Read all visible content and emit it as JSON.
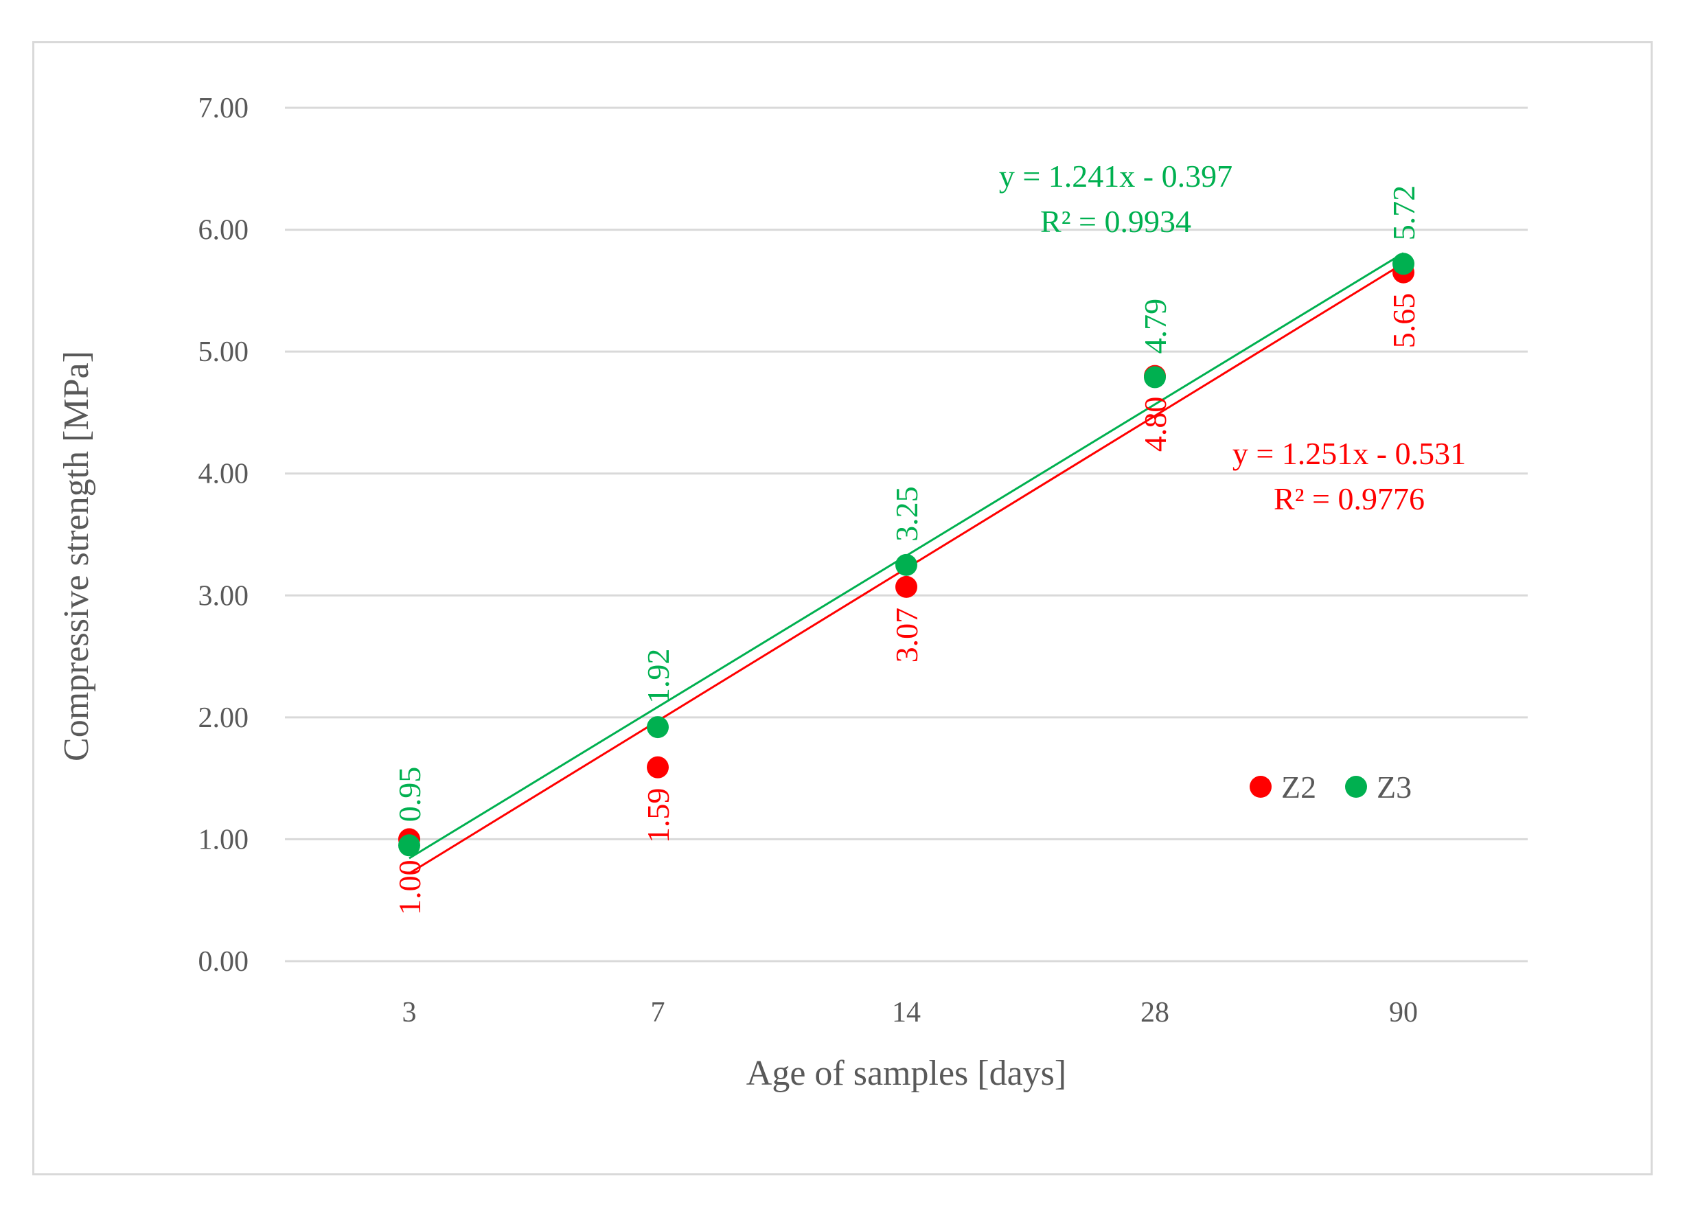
{
  "chart_data": {
    "type": "scatter",
    "title": "",
    "xlabel": "Age of samples [days]",
    "ylabel": "Compressive strength [MPa]",
    "categories": [
      "3",
      "7",
      "14",
      "28",
      "90"
    ],
    "ylim": [
      0,
      7
    ],
    "yticks": [
      "0.00",
      "1.00",
      "2.00",
      "3.00",
      "4.00",
      "5.00",
      "6.00",
      "7.00"
    ],
    "grid": true,
    "legend_position": "right",
    "series": [
      {
        "name": "Z2",
        "color": "#ff0000",
        "values": [
          1.0,
          1.59,
          3.07,
          4.8,
          5.65
        ],
        "labels": [
          "1.00",
          "1.59",
          "3.07",
          "4.80",
          "5.65"
        ],
        "trendline": {
          "slope": 1.251,
          "intercept": -0.531,
          "equation": "y = 1.251x - 0.531",
          "r2": "R² = 0.9776"
        }
      },
      {
        "name": "Z3",
        "color": "#00b050",
        "values": [
          0.95,
          1.92,
          3.25,
          4.79,
          5.72
        ],
        "labels": [
          "0.95",
          "1.92",
          "3.25",
          "4.79",
          "5.72"
        ],
        "trendline": {
          "slope": 1.241,
          "intercept": -0.397,
          "equation": "y = 1.241x - 0.397",
          "r2": "R² = 0.9934"
        }
      }
    ]
  }
}
